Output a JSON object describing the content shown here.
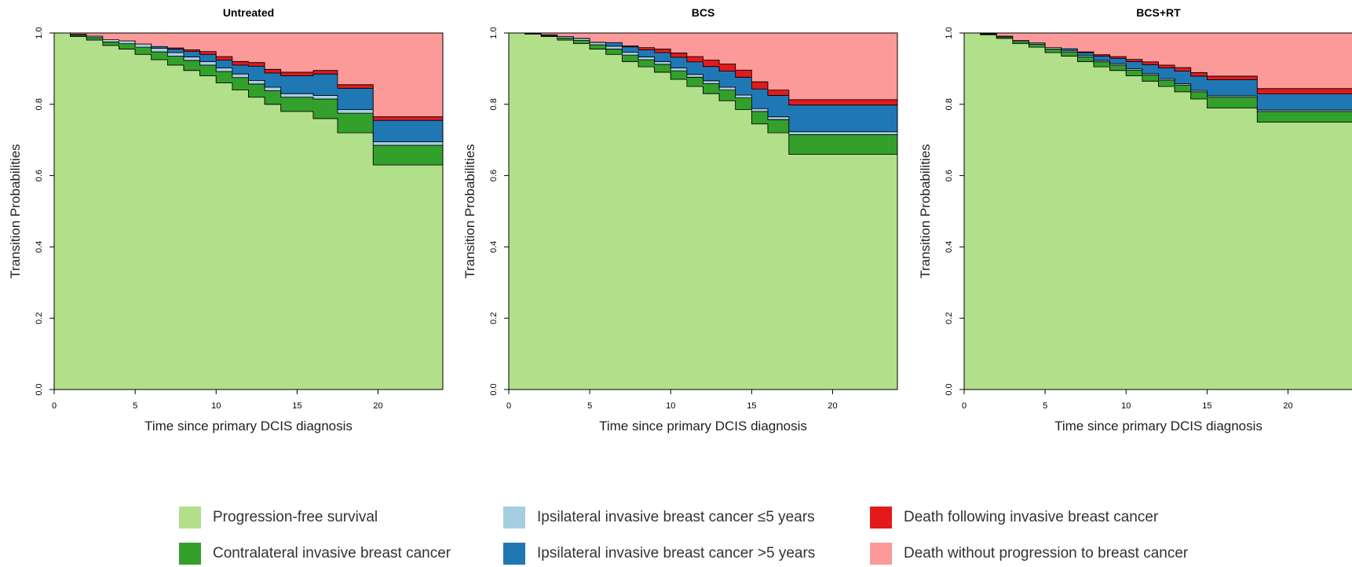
{
  "chart_data": [
    {
      "type": "area",
      "title": "Untreated",
      "xlabel": "Time since primary DCIS diagnosis",
      "ylabel": "Transition Probabilities",
      "xlim": [
        0,
        24
      ],
      "ylim": [
        0,
        1
      ],
      "xticks": [
        "0",
        "5",
        "10",
        "15",
        "20"
      ],
      "yticks": [
        "0.0",
        "0.2",
        "0.4",
        "0.6",
        "0.8",
        "1.0"
      ],
      "x": [
        0,
        1,
        2,
        3,
        4,
        5,
        6,
        7,
        8,
        9,
        10,
        11,
        12,
        13,
        14,
        15,
        16,
        17,
        17.5,
        18,
        19,
        19.7,
        20,
        21,
        22,
        23,
        24
      ],
      "series": [
        {
          "name": "Progression-free survival",
          "values": [
            1.0,
            0.99,
            0.98,
            0.965,
            0.955,
            0.94,
            0.925,
            0.91,
            0.895,
            0.88,
            0.86,
            0.84,
            0.82,
            0.8,
            0.78,
            0.78,
            0.76,
            0.76,
            0.72,
            0.72,
            0.72,
            0.63,
            0.63,
            0.63,
            0.63,
            0.63,
            0.63
          ]
        },
        {
          "name": "Contralateral invasive breast cancer",
          "values": [
            0.0,
            0.004,
            0.007,
            0.01,
            0.015,
            0.02,
            0.022,
            0.025,
            0.028,
            0.03,
            0.032,
            0.035,
            0.037,
            0.038,
            0.04,
            0.04,
            0.055,
            0.055,
            0.055,
            0.055,
            0.055,
            0.055,
            0.055,
            0.055,
            0.055,
            0.055,
            0.055
          ]
        },
        {
          "name": "Ipsilateral invasive breast cancer ≤5 years",
          "values": [
            0.0,
            0.002,
            0.004,
            0.006,
            0.008,
            0.009,
            0.01,
            0.01,
            0.01,
            0.01,
            0.01,
            0.01,
            0.01,
            0.01,
            0.01,
            0.01,
            0.01,
            0.01,
            0.01,
            0.01,
            0.01,
            0.01,
            0.01,
            0.01,
            0.01,
            0.01,
            0.01
          ]
        },
        {
          "name": "Ipsilateral invasive breast cancer >5 years",
          "values": [
            0.0,
            0.0,
            0.0,
            0.0,
            0.0,
            0.0,
            0.005,
            0.01,
            0.015,
            0.02,
            0.022,
            0.025,
            0.04,
            0.04,
            0.05,
            0.05,
            0.06,
            0.06,
            0.06,
            0.06,
            0.06,
            0.06,
            0.06,
            0.06,
            0.06,
            0.06,
            0.06
          ]
        },
        {
          "name": "Death following invasive breast cancer",
          "values": [
            0.0,
            0.0,
            0.0,
            0.0,
            0.0,
            0.0,
            0.0,
            0.003,
            0.005,
            0.008,
            0.01,
            0.01,
            0.01,
            0.01,
            0.01,
            0.01,
            0.01,
            0.01,
            0.01,
            0.01,
            0.01,
            0.01,
            0.01,
            0.01,
            0.01,
            0.01,
            0.01
          ]
        },
        {
          "name": "Death without progression to breast cancer",
          "values": [
            0.0,
            0.004,
            0.009,
            0.019,
            0.022,
            0.031,
            0.038,
            0.042,
            0.047,
            0.052,
            0.066,
            0.08,
            0.083,
            0.102,
            0.11,
            0.11,
            0.105,
            0.105,
            0.145,
            0.145,
            0.145,
            0.235,
            0.235,
            0.235,
            0.235,
            0.235,
            0.235
          ]
        }
      ]
    },
    {
      "type": "area",
      "title": "BCS",
      "xlabel": "Time since primary DCIS diagnosis",
      "ylabel": "Transition Probabilities",
      "xlim": [
        0,
        24
      ],
      "ylim": [
        0,
        1
      ],
      "xticks": [
        "0",
        "5",
        "10",
        "15",
        "20"
      ],
      "yticks": [
        "0.0",
        "0.2",
        "0.4",
        "0.6",
        "0.8",
        "1.0"
      ],
      "x": [
        0,
        1,
        2,
        3,
        4,
        5,
        6,
        7,
        8,
        9,
        10,
        11,
        12,
        13,
        14,
        15,
        16,
        17,
        17.3,
        18,
        19,
        20,
        21,
        22,
        23,
        24
      ],
      "series": [
        {
          "name": "Progression-free survival",
          "values": [
            1.0,
            0.997,
            0.99,
            0.98,
            0.97,
            0.955,
            0.94,
            0.92,
            0.905,
            0.89,
            0.87,
            0.85,
            0.83,
            0.81,
            0.785,
            0.745,
            0.72,
            0.72,
            0.66,
            0.66,
            0.66,
            0.66,
            0.66,
            0.66,
            0.66,
            0.66
          ]
        },
        {
          "name": "Contralateral invasive breast cancer",
          "values": [
            0.0,
            0.001,
            0.003,
            0.006,
            0.009,
            0.012,
            0.015,
            0.018,
            0.02,
            0.022,
            0.024,
            0.026,
            0.028,
            0.03,
            0.033,
            0.035,
            0.037,
            0.037,
            0.055,
            0.055,
            0.055,
            0.055,
            0.055,
            0.055,
            0.055,
            0.055
          ]
        },
        {
          "name": "Ipsilateral invasive breast cancer ≤5 years",
          "values": [
            0.0,
            0.001,
            0.002,
            0.004,
            0.006,
            0.007,
            0.008,
            0.008,
            0.008,
            0.008,
            0.008,
            0.008,
            0.008,
            0.008,
            0.008,
            0.008,
            0.008,
            0.008,
            0.008,
            0.008,
            0.008,
            0.008,
            0.008,
            0.008,
            0.008,
            0.008
          ]
        },
        {
          "name": "Ipsilateral invasive breast cancer >5 years",
          "values": [
            0.0,
            0.0,
            0.0,
            0.0,
            0.0,
            0.0,
            0.01,
            0.015,
            0.02,
            0.025,
            0.03,
            0.035,
            0.04,
            0.045,
            0.05,
            0.055,
            0.06,
            0.06,
            0.075,
            0.075,
            0.075,
            0.075,
            0.075,
            0.075,
            0.075,
            0.075
          ]
        },
        {
          "name": "Death following invasive breast cancer",
          "values": [
            0.0,
            0.0,
            0.0,
            0.0,
            0.0,
            0.0,
            0.0,
            0.003,
            0.006,
            0.01,
            0.012,
            0.015,
            0.018,
            0.02,
            0.02,
            0.02,
            0.015,
            0.015,
            0.015,
            0.015,
            0.015,
            0.015,
            0.015,
            0.015,
            0.015,
            0.015
          ]
        },
        {
          "name": "Death without progression to breast cancer",
          "values": [
            0.0,
            0.001,
            0.005,
            0.01,
            0.015,
            0.026,
            0.027,
            0.036,
            0.041,
            0.045,
            0.056,
            0.066,
            0.076,
            0.087,
            0.104,
            0.137,
            0.16,
            0.16,
            0.187,
            0.187,
            0.187,
            0.187,
            0.187,
            0.187,
            0.187,
            0.187
          ]
        }
      ]
    },
    {
      "type": "area",
      "title": "BCS+RT",
      "xlabel": "Time since primary DCIS diagnosis",
      "ylabel": "Transition Probabilities",
      "xlim": [
        0,
        24
      ],
      "ylim": [
        0,
        1
      ],
      "xticks": [
        "0",
        "5",
        "10",
        "15",
        "20"
      ],
      "yticks": [
        "0.0",
        "0.2",
        "0.4",
        "0.6",
        "0.8",
        "1.0"
      ],
      "x": [
        0,
        1,
        2,
        3,
        4,
        5,
        6,
        7,
        8,
        9,
        10,
        11,
        12,
        13,
        14,
        15,
        16,
        17,
        18,
        18.1,
        19,
        20,
        21,
        22,
        23,
        24
      ],
      "series": [
        {
          "name": "Progression-free survival",
          "values": [
            1.0,
            0.995,
            0.985,
            0.97,
            0.96,
            0.945,
            0.935,
            0.92,
            0.905,
            0.895,
            0.88,
            0.865,
            0.85,
            0.835,
            0.815,
            0.79,
            0.79,
            0.79,
            0.79,
            0.75,
            0.75,
            0.75,
            0.75,
            0.75,
            0.75,
            0.75
          ]
        },
        {
          "name": "Contralateral invasive breast cancer",
          "values": [
            0.0,
            0.002,
            0.004,
            0.006,
            0.008,
            0.01,
            0.012,
            0.013,
            0.014,
            0.015,
            0.016,
            0.017,
            0.018,
            0.019,
            0.02,
            0.03,
            0.03,
            0.03,
            0.03,
            0.03,
            0.03,
            0.03,
            0.03,
            0.03,
            0.03,
            0.03
          ]
        },
        {
          "name": "Ipsilateral invasive breast cancer ≤5 years",
          "values": [
            0.0,
            0.001,
            0.002,
            0.003,
            0.004,
            0.004,
            0.004,
            0.004,
            0.004,
            0.004,
            0.004,
            0.004,
            0.004,
            0.004,
            0.004,
            0.004,
            0.004,
            0.004,
            0.004,
            0.004,
            0.004,
            0.004,
            0.004,
            0.004,
            0.004,
            0.004
          ]
        },
        {
          "name": "Ipsilateral invasive breast cancer >5 years",
          "values": [
            0.0,
            0.0,
            0.0,
            0.0,
            0.0,
            0.0,
            0.005,
            0.008,
            0.012,
            0.015,
            0.02,
            0.025,
            0.03,
            0.035,
            0.04,
            0.045,
            0.045,
            0.045,
            0.045,
            0.045,
            0.045,
            0.045,
            0.045,
            0.045,
            0.045,
            0.045
          ]
        },
        {
          "name": "Death following invasive breast cancer",
          "values": [
            0.0,
            0.0,
            0.0,
            0.0,
            0.0,
            0.0,
            0.0,
            0.002,
            0.004,
            0.005,
            0.006,
            0.008,
            0.008,
            0.01,
            0.01,
            0.01,
            0.01,
            0.01,
            0.01,
            0.015,
            0.015,
            0.015,
            0.015,
            0.015,
            0.015,
            0.015
          ]
        },
        {
          "name": "Death without progression to breast cancer",
          "values": [
            0.0,
            0.002,
            0.009,
            0.021,
            0.028,
            0.041,
            0.044,
            0.053,
            0.061,
            0.066,
            0.074,
            0.081,
            0.09,
            0.097,
            0.111,
            0.121,
            0.121,
            0.121,
            0.121,
            0.156,
            0.156,
            0.156,
            0.156,
            0.156,
            0.156,
            0.156
          ]
        }
      ]
    }
  ],
  "legend": {
    "items": [
      {
        "label": "Progression-free survival",
        "color": "#b2df8a"
      },
      {
        "label": "Contralateral invasive breast cancer",
        "color": "#33a02c"
      },
      {
        "label": "Ipsilateral invasive breast cancer ≤5 years",
        "color": "#a6cee3"
      },
      {
        "label": "Ipsilateral invasive breast cancer >5 years",
        "color": "#1f78b4"
      },
      {
        "label": "Death following invasive breast cancer",
        "color": "#e31a1c"
      },
      {
        "label": "Death without progression to breast cancer",
        "color": "#fb9a99"
      }
    ]
  }
}
